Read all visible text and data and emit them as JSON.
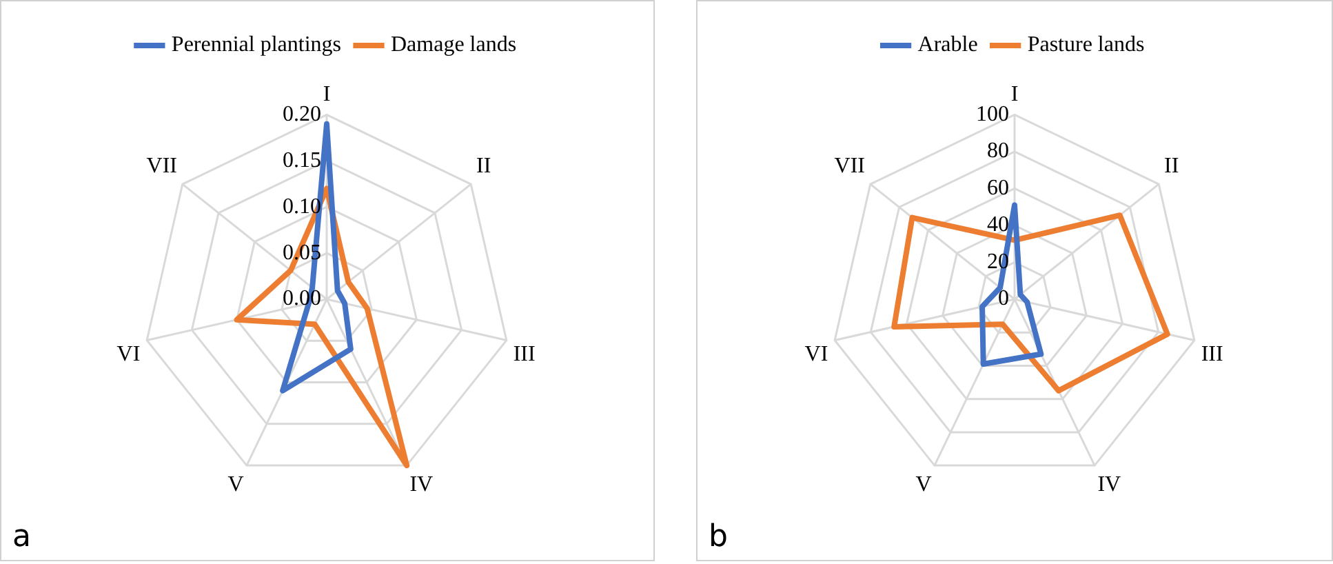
{
  "chart_data": [
    {
      "type": "radar",
      "categories": [
        "I",
        "II",
        "III",
        "IV",
        "V",
        "VI",
        "VII"
      ],
      "series": [
        {
          "name": "Perennial plantings",
          "color": "#4472c4",
          "values": [
            0.19,
            0.015,
            0.02,
            0.06,
            0.11,
            0.02,
            0.02
          ]
        },
        {
          "name": "Damage lands",
          "color": "#ed7d31",
          "values": [
            0.12,
            0.03,
            0.045,
            0.2,
            0.03,
            0.1,
            0.05
          ]
        }
      ],
      "ylim": [
        0,
        0.2
      ],
      "yticks": [
        {
          "value": 0,
          "label": "0.00"
        },
        {
          "value": 0.05,
          "label": "0.05"
        },
        {
          "value": 0.1,
          "label": "0.10"
        },
        {
          "value": 0.15,
          "label": "0.15"
        },
        {
          "value": 0.2,
          "label": "0.20"
        }
      ],
      "grid": true,
      "legend": "top",
      "marker": "none",
      "annotations": [
        "a"
      ]
    },
    {
      "type": "radar",
      "categories": [
        "I",
        "II",
        "III",
        "IV",
        "V",
        "VI",
        "VII"
      ],
      "series": [
        {
          "name": "Arable",
          "color": "#4472c4",
          "values": [
            51,
            4,
            7,
            33,
            39,
            18,
            10
          ]
        },
        {
          "name": "Pasture lands",
          "color": "#ed7d31",
          "values": [
            32,
            73,
            85,
            55,
            15,
            67,
            71
          ]
        }
      ],
      "ylim": [
        0,
        100
      ],
      "yticks": [
        0,
        20,
        40,
        60,
        80,
        100
      ],
      "grid": true,
      "legend": "top",
      "marker": "none",
      "annotations": [
        "b"
      ]
    }
  ]
}
